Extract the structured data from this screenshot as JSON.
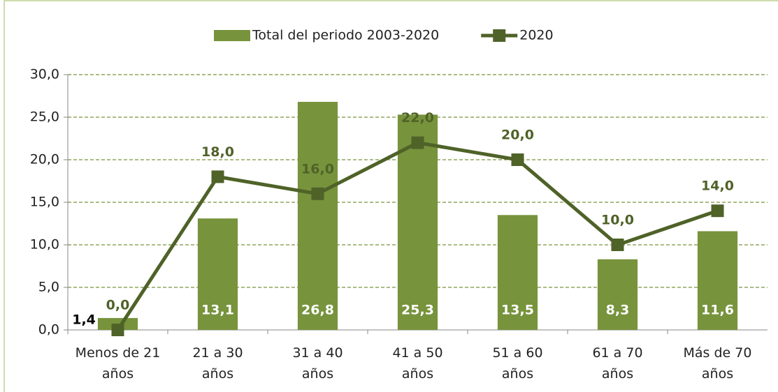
{
  "chart_data": {
    "type": "bar_line",
    "categories": [
      "Menos de 21 años",
      "21 a 30 años",
      "31 a 40 años",
      "41 a 50 años",
      "51 a 60 años",
      "61 a 70 años",
      "Más de 70 años"
    ],
    "series": [
      {
        "name": "Total del periodo 2003-2020",
        "type": "bar",
        "color": "#77933c",
        "values": [
          1.4,
          13.1,
          26.8,
          25.3,
          13.5,
          8.3,
          11.6
        ],
        "value_labels": [
          "1,4",
          "13,1",
          "26,8",
          "25,3",
          "13,5",
          "8,3",
          "11,6"
        ]
      },
      {
        "name": "2020",
        "type": "line",
        "color": "#4f6228",
        "values": [
          0,
          18,
          16,
          22,
          20,
          10,
          14
        ],
        "value_labels": [
          "0,0",
          "18,0",
          "16,0",
          "22,0",
          "20,0",
          "10,0",
          "14,0"
        ]
      }
    ],
    "ylim": [
      0,
      30
    ],
    "yticks": [
      {
        "value": 0,
        "label": "0,0"
      },
      {
        "value": 5,
        "label": "5,0"
      },
      {
        "value": 10,
        "label": "10,0"
      },
      {
        "value": 15,
        "label": "15,0"
      },
      {
        "value": 20,
        "label": "20,0"
      },
      {
        "value": 25,
        "label": "25,0"
      },
      {
        "value": 30,
        "label": "30,0"
      }
    ],
    "grid": true,
    "legend": "top"
  }
}
